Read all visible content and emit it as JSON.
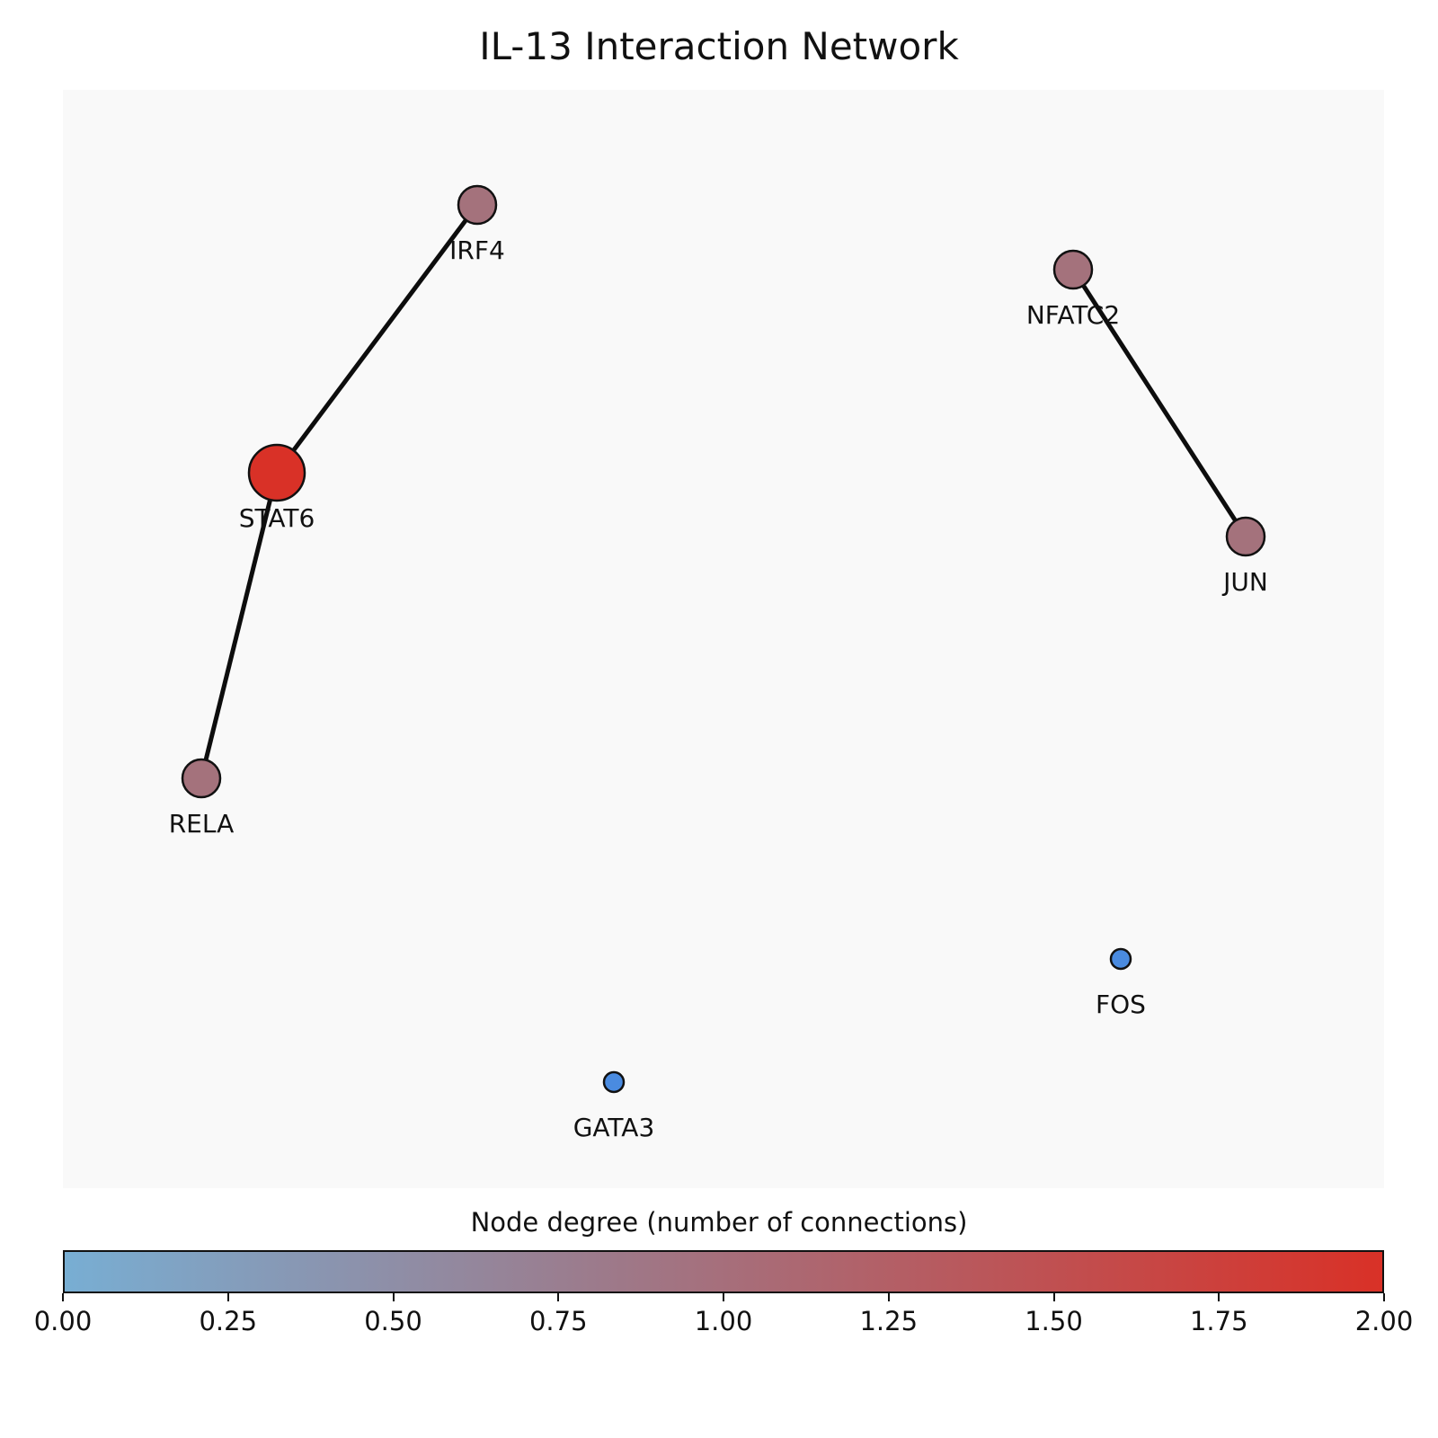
{
  "title": "IL-13 Interaction Network",
  "network": {
    "nodes": [
      {
        "id": "IRF4",
        "degree": 1,
        "color": "#a4727c"
      },
      {
        "id": "NFATC2",
        "degree": 1,
        "color": "#a4727c"
      },
      {
        "id": "STAT6",
        "degree": 2,
        "color": "#d93127"
      },
      {
        "id": "JUN",
        "degree": 1,
        "color": "#a4727c"
      },
      {
        "id": "RELA",
        "degree": 1,
        "color": "#a4727c"
      },
      {
        "id": "FOS",
        "degree": 0,
        "color": "#4a8be0"
      },
      {
        "id": "GATA3",
        "degree": 0,
        "color": "#4a8be0"
      }
    ],
    "edges": [
      {
        "source": "STAT6",
        "target": "IRF4"
      },
      {
        "source": "STAT6",
        "target": "RELA"
      },
      {
        "source": "NFATC2",
        "target": "JUN"
      }
    ]
  },
  "colorbar": {
    "label": "Node degree (number of connections)",
    "range": [
      0,
      2
    ],
    "ticks": [
      "0.00",
      "0.25",
      "0.50",
      "0.75",
      "1.00",
      "1.25",
      "1.50",
      "1.75",
      "2.00"
    ],
    "colors": [
      "#78aed3",
      "#9c7b8c",
      "#d93127"
    ]
  }
}
